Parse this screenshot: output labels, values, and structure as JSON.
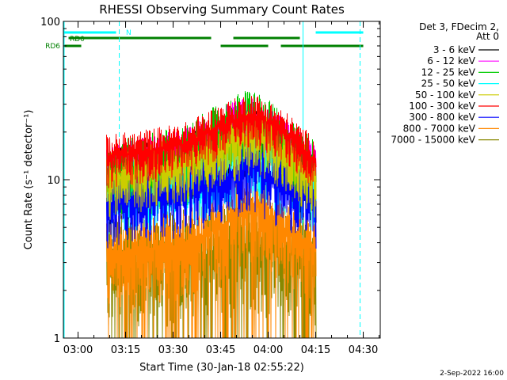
{
  "chart_data": {
    "type": "line",
    "title": "RHESSI Observing Summary Count Rates",
    "xlabel": "Start Time (30-Jan-18 02:55:22)",
    "ylabel": "Count Rate (s⁻¹ detector⁻¹)",
    "yscale": "log",
    "ylim": [
      1,
      100
    ],
    "xlim_minutes_from_start": [
      0,
      100
    ],
    "x_ticks": [
      "03:00",
      "03:15",
      "03:30",
      "03:45",
      "04:00",
      "04:15",
      "04:30"
    ],
    "y_ticks": [
      "1",
      "10",
      "100"
    ],
    "legend_header": [
      "Det 3, FDecim 2,",
      "Att 0"
    ],
    "legend_position": "right",
    "footer_date": "2-Sep-2022 16:00",
    "series": [
      {
        "name": "3 - 6 keV",
        "color": "#000000",
        "x": [
          "03:09",
          "03:20",
          "03:35",
          "03:45",
          "03:55",
          "04:05",
          "04:15"
        ],
        "y": [
          10,
          11,
          13,
          16,
          19,
          14,
          10
        ]
      },
      {
        "name": "6 - 12 keV",
        "color": "#ff00ff",
        "x": [
          "03:09",
          "03:20",
          "03:35",
          "03:45",
          "03:55",
          "04:05",
          "04:15"
        ],
        "y": [
          12,
          13,
          15,
          20,
          24,
          17,
          12
        ]
      },
      {
        "name": "12 - 25 keV",
        "color": "#00cc00",
        "x": [
          "03:09",
          "03:20",
          "03:35",
          "03:45",
          "03:55",
          "04:05",
          "04:15"
        ],
        "y": [
          11,
          12,
          14,
          19,
          24,
          16,
          11
        ]
      },
      {
        "name": "25 - 50 keV",
        "color": "#00ffff",
        "x": [
          "03:09",
          "03:20",
          "03:35",
          "03:45",
          "03:55",
          "04:05",
          "04:15"
        ],
        "y": [
          9,
          9.5,
          10,
          12,
          15,
          12,
          9
        ]
      },
      {
        "name": "50 - 100 keV",
        "color": "#cccc00",
        "x": [
          "03:09",
          "03:20",
          "03:35",
          "03:45",
          "03:55",
          "04:05",
          "04:15"
        ],
        "y": [
          10,
          11,
          13,
          16,
          19,
          15,
          10
        ]
      },
      {
        "name": "100 - 300 keV",
        "color": "#ff0000",
        "x": [
          "03:09",
          "03:20",
          "03:35",
          "03:45",
          "03:55",
          "04:05",
          "04:15"
        ],
        "y": [
          14,
          15,
          17,
          22,
          26,
          20,
          13
        ]
      },
      {
        "name": "300 - 800 keV",
        "color": "#0000ff",
        "x": [
          "03:09",
          "03:20",
          "03:35",
          "03:45",
          "03:55",
          "04:05",
          "04:15"
        ],
        "y": [
          7,
          7.5,
          8.5,
          10,
          12,
          9,
          7
        ]
      },
      {
        "name": "800 - 7000 keV",
        "color": "#ff8800",
        "x": [
          "03:09",
          "03:20",
          "03:35",
          "03:45",
          "03:55",
          "04:05",
          "04:15"
        ],
        "y": [
          3.5,
          3.5,
          4,
          5,
          7,
          5,
          3.5
        ]
      },
      {
        "name": "7000 - 15000 keV",
        "color": "#888800",
        "x": [
          "03:09",
          "03:20",
          "03:35",
          "03:45",
          "03:55",
          "04:05",
          "04:15"
        ],
        "y": [
          3,
          3,
          3.2,
          3.5,
          4,
          3.5,
          3
        ]
      }
    ],
    "flags": [
      {
        "label": "N",
        "color": "#00ffff",
        "intervals": [
          [
            "02:55",
            "03:12"
          ],
          [
            "04:15",
            "04:30"
          ]
        ]
      },
      {
        "label": "RD0",
        "color": "#008000",
        "intervals": [
          [
            "02:57",
            "03:42"
          ],
          [
            "03:49",
            "04:10"
          ]
        ]
      },
      {
        "label": "RD6",
        "color": "#008000",
        "intervals": [
          [
            "02:55",
            "03:01"
          ],
          [
            "03:45",
            "04:00"
          ],
          [
            "04:04",
            "04:30"
          ]
        ]
      }
    ],
    "vlines": [
      {
        "x": "02:55",
        "color": "#00ffff",
        "style": "solid"
      },
      {
        "x": "03:13",
        "color": "#00ffff",
        "style": "dashed"
      },
      {
        "x": "04:11",
        "color": "#00ffff",
        "style": "solid"
      },
      {
        "x": "04:29",
        "color": "#00ffff",
        "style": "dashed"
      }
    ]
  }
}
